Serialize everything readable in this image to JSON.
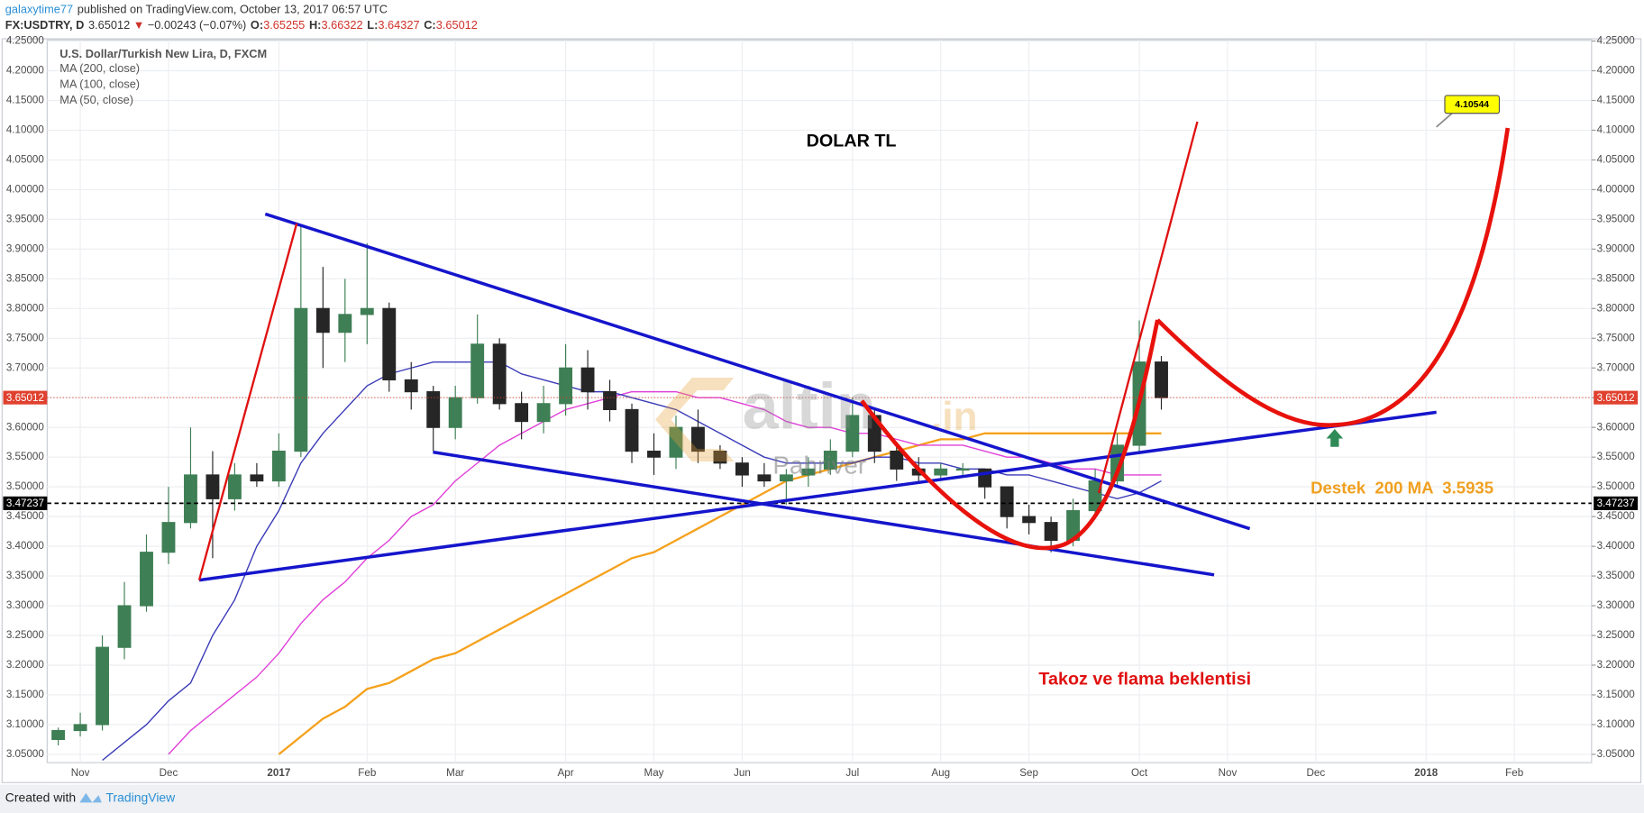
{
  "header": {
    "author": "galaxytime77",
    "published": "published on TradingView.com, October 13, 2017 06:57 UTC",
    "symbol": "FX:USDTRY, D",
    "last": "3.65012",
    "arrow": "▼",
    "change": "−0.00243 (−0.07%)",
    "ohlc": [
      {
        "label": "O:",
        "value": "3.65255"
      },
      {
        "label": "H:",
        "value": "3.66322"
      },
      {
        "label": "L:",
        "value": "3.64327"
      },
      {
        "label": "C:",
        "value": "3.65012"
      }
    ]
  },
  "chart_data": {
    "type": "candlestick",
    "subtitle": "U.S. Dollar/Turkish New Lira, D, FXCM",
    "categories": [
      null,
      "Nov",
      null,
      null,
      null,
      "Dec",
      null,
      null,
      null,
      null,
      "2017",
      null,
      null,
      null,
      "Feb",
      null,
      null,
      null,
      "Mar",
      null,
      null,
      null,
      null,
      "Apr",
      null,
      null,
      null,
      "May",
      null,
      null,
      null,
      "Jun",
      null,
      null,
      null,
      null,
      "Jul",
      null,
      null,
      null,
      "Aug",
      null,
      null,
      null,
      "Sep",
      null,
      null,
      null,
      null,
      "Oct",
      null,
      null,
      null,
      "Nov",
      null,
      null,
      null,
      "Dec",
      null,
      null,
      null,
      null,
      "2018",
      null,
      null,
      null,
      "Feb",
      null,
      null,
      null
    ],
    "open": [
      3.075,
      3.09,
      3.1,
      3.23,
      3.3,
      3.39,
      3.44,
      3.52,
      3.48,
      3.52,
      3.51,
      3.56,
      3.8,
      3.76,
      3.79,
      3.8,
      3.68,
      3.66,
      3.6,
      3.65,
      3.74,
      3.64,
      3.61,
      3.64,
      3.7,
      3.66,
      3.63,
      3.56,
      3.55,
      3.6,
      3.56,
      3.54,
      3.52,
      3.51,
      3.52,
      3.53,
      3.56,
      3.62,
      3.56,
      3.53,
      3.52,
      3.53,
      3.53,
      3.5,
      3.45,
      3.44,
      3.41,
      3.46,
      3.51,
      3.57,
      3.71,
      null,
      null,
      null,
      null,
      null,
      null,
      null,
      null,
      null,
      null,
      null,
      null,
      null,
      null,
      null,
      null,
      null,
      null,
      null
    ],
    "high": [
      3.095,
      3.12,
      3.25,
      3.34,
      3.42,
      3.5,
      3.6,
      3.56,
      3.54,
      3.54,
      3.59,
      3.94,
      3.87,
      3.85,
      3.91,
      3.81,
      3.71,
      3.67,
      3.67,
      3.79,
      3.75,
      3.66,
      3.67,
      3.74,
      3.73,
      3.68,
      3.64,
      3.59,
      3.62,
      3.63,
      3.57,
      3.55,
      3.54,
      3.53,
      3.55,
      3.58,
      3.65,
      3.63,
      3.57,
      3.55,
      3.54,
      3.54,
      3.53,
      3.5,
      3.47,
      3.45,
      3.48,
      3.53,
      3.59,
      3.78,
      3.72,
      null,
      null,
      null,
      null,
      null,
      null,
      null,
      null,
      null,
      null,
      null,
      null,
      null,
      null,
      null,
      null,
      null,
      null,
      null
    ],
    "low": [
      3.065,
      3.08,
      3.09,
      3.21,
      3.29,
      3.37,
      3.43,
      3.38,
      3.46,
      3.5,
      3.5,
      3.55,
      3.7,
      3.71,
      3.74,
      3.66,
      3.63,
      3.56,
      3.58,
      3.64,
      3.63,
      3.58,
      3.59,
      3.62,
      3.63,
      3.61,
      3.54,
      3.52,
      3.53,
      3.54,
      3.53,
      3.5,
      3.5,
      3.47,
      3.5,
      3.52,
      3.55,
      3.54,
      3.51,
      3.51,
      3.51,
      3.52,
      3.48,
      3.43,
      3.42,
      3.39,
      3.4,
      3.45,
      3.5,
      3.56,
      3.63,
      null,
      null,
      null,
      null,
      null,
      null,
      null,
      null,
      null,
      null,
      null,
      null,
      null,
      null,
      null,
      null,
      null,
      null,
      null
    ],
    "close": [
      3.09,
      3.1,
      3.23,
      3.3,
      3.39,
      3.44,
      3.52,
      3.48,
      3.52,
      3.51,
      3.56,
      3.8,
      3.76,
      3.79,
      3.8,
      3.68,
      3.66,
      3.6,
      3.65,
      3.74,
      3.64,
      3.61,
      3.64,
      3.7,
      3.66,
      3.63,
      3.56,
      3.55,
      3.6,
      3.56,
      3.54,
      3.52,
      3.51,
      3.52,
      3.53,
      3.56,
      3.62,
      3.56,
      3.53,
      3.52,
      3.53,
      3.53,
      3.5,
      3.45,
      3.44,
      3.41,
      3.46,
      3.51,
      3.57,
      3.71,
      3.65012,
      null,
      null,
      null,
      null,
      null,
      null,
      null,
      null,
      null,
      null,
      null,
      null,
      null,
      null,
      null,
      null,
      null,
      null,
      null
    ],
    "up_color": "#3f7f55",
    "down_color": "#262626",
    "series": [
      {
        "name": "MA (200, close)",
        "color": "#f5a11c",
        "values": [
          null,
          null,
          null,
          null,
          null,
          null,
          null,
          null,
          null,
          null,
          3.05,
          3.08,
          3.11,
          3.13,
          3.16,
          3.17,
          3.19,
          3.21,
          3.22,
          3.24,
          3.26,
          3.28,
          3.3,
          3.32,
          3.34,
          3.36,
          3.38,
          3.39,
          3.41,
          3.43,
          3.45,
          3.47,
          3.49,
          3.51,
          3.52,
          3.53,
          3.54,
          3.55,
          3.56,
          3.57,
          3.58,
          3.58,
          3.59,
          3.59,
          3.59,
          3.59,
          3.59,
          3.59,
          3.59,
          3.59,
          3.59,
          null,
          null,
          null,
          null,
          null,
          null,
          null,
          null,
          null,
          null,
          null,
          null,
          null,
          null,
          null,
          null,
          null,
          null,
          null
        ]
      },
      {
        "name": "MA (100, close)",
        "color": "#e040d8",
        "values": [
          null,
          null,
          null,
          null,
          null,
          3.05,
          3.09,
          3.12,
          3.15,
          3.18,
          3.22,
          3.27,
          3.31,
          3.34,
          3.38,
          3.41,
          3.45,
          3.47,
          3.51,
          3.54,
          3.57,
          3.59,
          3.61,
          3.63,
          3.64,
          3.65,
          3.66,
          3.66,
          3.66,
          3.65,
          3.65,
          3.64,
          3.63,
          3.61,
          3.6,
          3.6,
          3.59,
          3.59,
          3.58,
          3.57,
          3.57,
          3.57,
          3.56,
          3.55,
          3.55,
          3.54,
          3.53,
          3.53,
          3.52,
          3.52,
          3.52,
          null,
          null,
          null,
          null,
          null,
          null,
          null,
          null,
          null,
          null,
          null,
          null,
          null,
          null,
          null,
          null,
          null,
          null,
          null
        ]
      },
      {
        "name": "MA (50, close)",
        "color": "#3b3bb8",
        "values": [
          null,
          null,
          3.04,
          3.07,
          3.1,
          3.14,
          3.17,
          3.25,
          3.31,
          3.4,
          3.46,
          3.54,
          3.59,
          3.63,
          3.67,
          3.69,
          3.7,
          3.71,
          3.71,
          3.71,
          3.71,
          3.69,
          3.68,
          3.67,
          3.66,
          3.66,
          3.65,
          3.64,
          3.63,
          3.61,
          3.59,
          3.57,
          3.55,
          3.54,
          3.54,
          3.54,
          3.54,
          3.55,
          3.55,
          3.54,
          3.54,
          3.53,
          3.53,
          3.52,
          3.52,
          3.51,
          3.5,
          3.49,
          3.48,
          3.49,
          3.51,
          null,
          null,
          null,
          null,
          null,
          null,
          null,
          null,
          null,
          null,
          null,
          null,
          null,
          null,
          null,
          null,
          null,
          null,
          null
        ]
      }
    ],
    "ylim": [
      3.036,
      4.252
    ],
    "yticks": [
      {
        "value": 3.05,
        "label": "3.05000"
      },
      {
        "value": 3.1,
        "label": "3.10000"
      },
      {
        "value": 3.15,
        "label": "3.15000"
      },
      {
        "value": 3.2,
        "label": "3.20000"
      },
      {
        "value": 3.25,
        "label": "3.25000"
      },
      {
        "value": 3.3,
        "label": "3.30000"
      },
      {
        "value": 3.35,
        "label": "3.35000"
      },
      {
        "value": 3.4,
        "label": "3.40000"
      },
      {
        "value": 3.45,
        "label": "3.45000"
      },
      {
        "value": 3.5,
        "label": "3.50000"
      },
      {
        "value": 3.55,
        "label": "3.55000"
      },
      {
        "value": 3.6,
        "label": "3.60000"
      },
      {
        "value": 3.65,
        "label": "3.65000"
      },
      {
        "value": 3.7,
        "label": "3.70000"
      },
      {
        "value": 3.75,
        "label": "3.75000"
      },
      {
        "value": 3.8,
        "label": "3.80000"
      },
      {
        "value": 3.85,
        "label": "3.85000"
      },
      {
        "value": 3.9,
        "label": "3.90000"
      },
      {
        "value": 3.95,
        "label": "3.95000"
      },
      {
        "value": 4.0,
        "label": "4.00000"
      },
      {
        "value": 4.05,
        "label": "4.05000"
      },
      {
        "value": 4.1,
        "label": "4.10000"
      },
      {
        "value": 4.15,
        "label": "4.15000"
      },
      {
        "value": 4.2,
        "label": "4.20000"
      },
      {
        "value": 4.25,
        "label": "4.25000"
      }
    ],
    "grid": true,
    "price_lines": [
      {
        "value": 3.65012,
        "color": "#e0412f",
        "style": "dotted"
      },
      {
        "value": 3.47237,
        "color": "#000000",
        "style": "dashed"
      }
    ],
    "callout": {
      "value": 4.10544,
      "color": "#ffff00"
    },
    "annotations": [
      "DOLAR TL",
      "Takoz ve flama beklentisi",
      "Destek  200 MA  3.5935"
    ],
    "watermark": [
      "altin",
      ".in",
      "Pahriver"
    ]
  },
  "footer": {
    "created_with": "Created with",
    "brand": "TradingView"
  }
}
